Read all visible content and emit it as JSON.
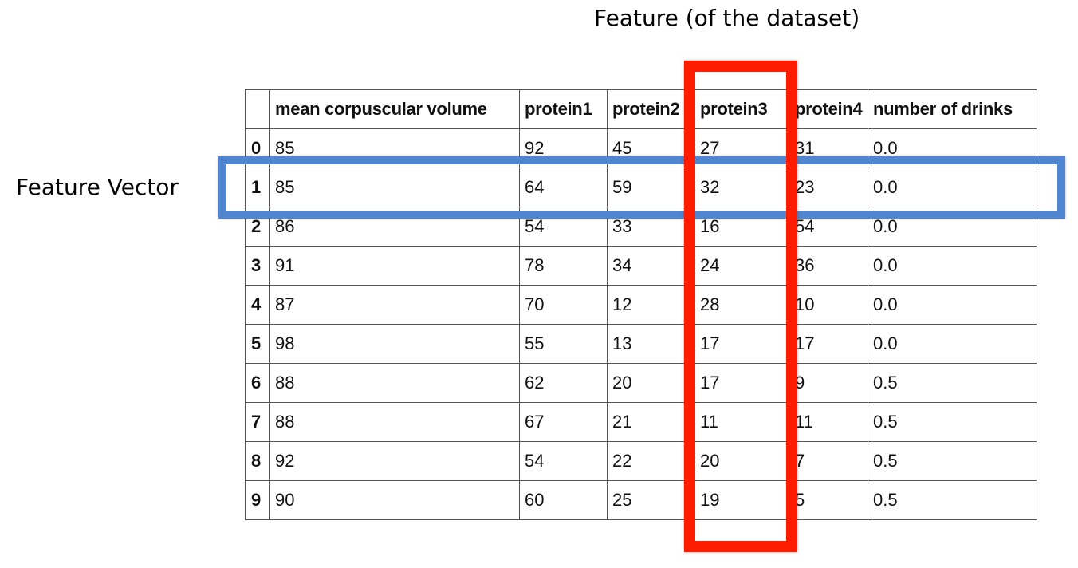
{
  "feature_label": "Feature (of the dataset)",
  "vector_label": "Feature Vector",
  "highlight_colors": {
    "feature_column": "#ff1d00",
    "feature_row": "#4f86cf"
  },
  "table": {
    "headers": [
      "",
      "mean corpuscular volume",
      "protein1",
      "protein2",
      "protein3",
      "protein4",
      "number of drinks"
    ],
    "rows": [
      [
        "0",
        "85",
        "92",
        "45",
        "27",
        "31",
        "0.0"
      ],
      [
        "1",
        "85",
        "64",
        "59",
        "32",
        "23",
        "0.0"
      ],
      [
        "2",
        "86",
        "54",
        "33",
        "16",
        "54",
        "0.0"
      ],
      [
        "3",
        "91",
        "78",
        "34",
        "24",
        "36",
        "0.0"
      ],
      [
        "4",
        "87",
        "70",
        "12",
        "28",
        "10",
        "0.0"
      ],
      [
        "5",
        "98",
        "55",
        "13",
        "17",
        "17",
        "0.0"
      ],
      [
        "6",
        "88",
        "62",
        "20",
        "17",
        "9",
        "0.5"
      ],
      [
        "7",
        "88",
        "67",
        "21",
        "11",
        "11",
        "0.5"
      ],
      [
        "8",
        "92",
        "54",
        "22",
        "20",
        "7",
        "0.5"
      ],
      [
        "9",
        "90",
        "60",
        "25",
        "19",
        "5",
        "0.5"
      ]
    ]
  }
}
